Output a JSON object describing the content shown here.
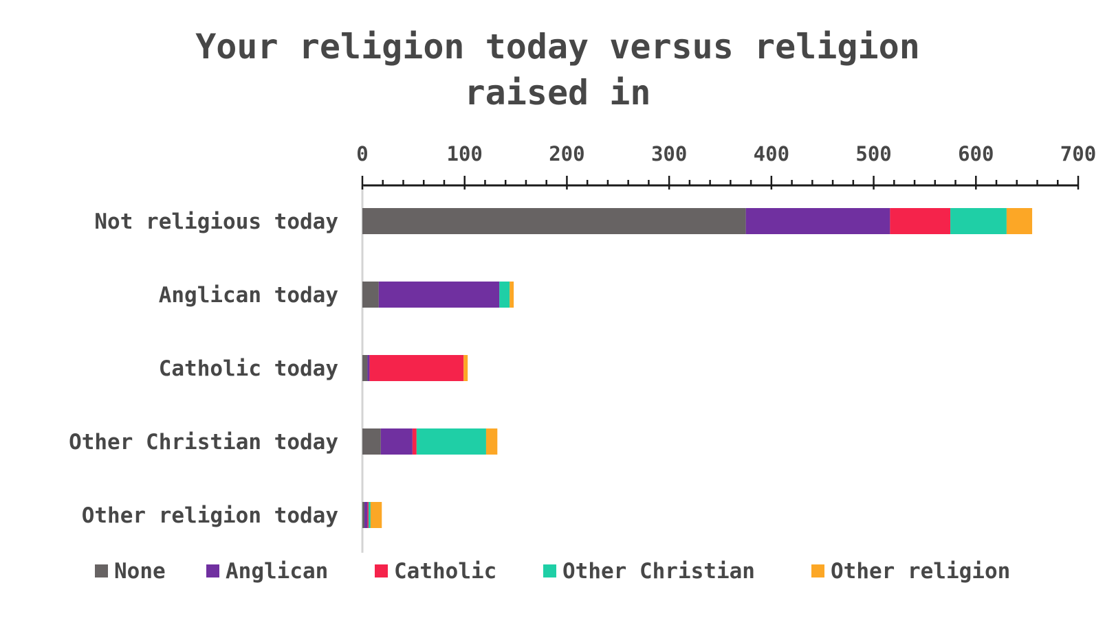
{
  "chart_data": {
    "type": "bar",
    "orientation": "horizontal",
    "stacked": true,
    "title": "Your religion today versus religion raised in",
    "title_lines": [
      "Your religion today versus religion",
      "raised in"
    ],
    "xlim": [
      0,
      700
    ],
    "x_ticks": [
      0,
      100,
      200,
      300,
      400,
      500,
      600,
      700
    ],
    "x_axis_position": "top",
    "grid": false,
    "legend_position": "bottom",
    "categories": [
      "Not religious today",
      "Anglican today",
      "Catholic today",
      "Other Christian today",
      "Other religion today"
    ],
    "series": [
      {
        "name": "None",
        "color": "#676363",
        "values": [
          375,
          16,
          5,
          18,
          2
        ]
      },
      {
        "name": "Anglican",
        "color": "#7030a0",
        "values": [
          141,
          118,
          2,
          31,
          3
        ]
      },
      {
        "name": "Catholic",
        "color": "#f5234b",
        "values": [
          59,
          0,
          92,
          4,
          1
        ]
      },
      {
        "name": "Other Christian",
        "color": "#1fcfa6",
        "values": [
          55,
          10,
          0,
          68,
          2
        ]
      },
      {
        "name": "Other religion",
        "color": "#fca726",
        "values": [
          25,
          4,
          4,
          11,
          11
        ]
      }
    ]
  }
}
